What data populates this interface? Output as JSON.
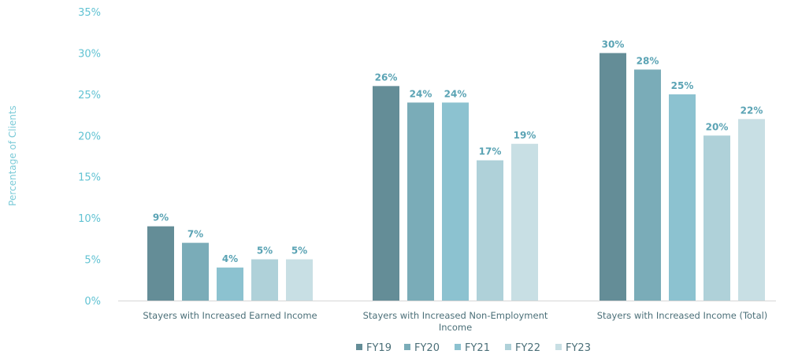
{
  "chart_data": {
    "type": "bar",
    "title": "",
    "xlabel": "",
    "ylabel": "Percentage of Clients",
    "ylim": [
      0,
      35
    ],
    "yticks": [
      "0%",
      "5%",
      "10%",
      "15%",
      "20%",
      "25%",
      "30%",
      "35%"
    ],
    "ytick_values": [
      0,
      5,
      10,
      15,
      20,
      25,
      30,
      35
    ],
    "grid": false,
    "legend_position": "bottom",
    "categories": [
      [
        "Stayers with Increased Earned Income"
      ],
      [
        "Stayers with Increased Non-Employment",
        "Income"
      ],
      [
        "Stayers with Increased Income (Total)"
      ]
    ],
    "series": [
      {
        "name": "FY19",
        "color": "#648d97",
        "values": [
          9,
          26,
          30
        ],
        "labels": [
          "9%",
          "26%",
          "30%"
        ]
      },
      {
        "name": "FY20",
        "color": "#7aacb8",
        "values": [
          7,
          24,
          28
        ],
        "labels": [
          "7%",
          "24%",
          "28%"
        ]
      },
      {
        "name": "FY21",
        "color": "#8cc2d0",
        "values": [
          4,
          24,
          25
        ],
        "labels": [
          "4%",
          "24%",
          "25%"
        ]
      },
      {
        "name": "FY22",
        "color": "#afd1d9",
        "values": [
          5,
          17,
          20
        ],
        "labels": [
          "5%",
          "17%",
          "20%"
        ]
      },
      {
        "name": "FY23",
        "color": "#c8dfe4",
        "values": [
          5,
          19,
          22
        ],
        "labels": [
          "5%",
          "19%",
          "22%"
        ]
      }
    ]
  }
}
